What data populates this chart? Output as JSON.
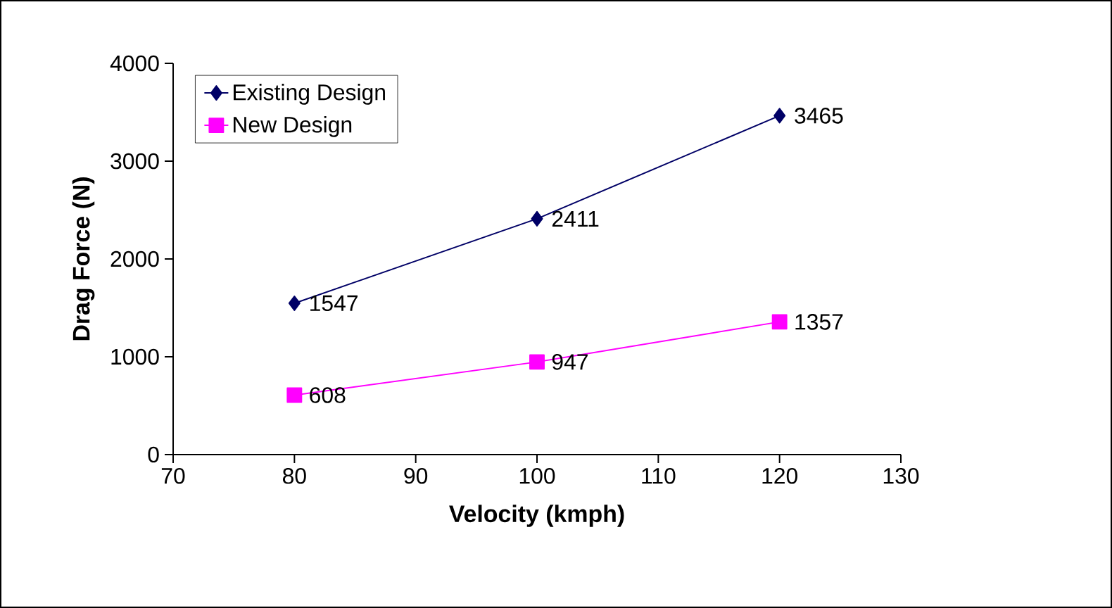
{
  "chart_data": {
    "type": "line",
    "xlabel": "Velocity (kmph)",
    "ylabel": "Drag Force (N)",
    "x": [
      80,
      100,
      120
    ],
    "series": [
      {
        "name": "Existing Design",
        "color": "#000066",
        "marker": "diamond",
        "values": [
          1547,
          2411,
          3465
        ]
      },
      {
        "name": "New Design",
        "color": "#ff00ff",
        "marker": "square",
        "values": [
          608,
          947,
          1357
        ]
      }
    ],
    "xlim": [
      70,
      130
    ],
    "xticks": [
      70,
      80,
      90,
      100,
      110,
      120,
      130
    ],
    "ylim": [
      0,
      4000
    ],
    "yticks": [
      0,
      1000,
      2000,
      3000,
      4000
    ],
    "grid": false,
    "legend": "top left",
    "data_labels": true,
    "line_style": "solid"
  }
}
